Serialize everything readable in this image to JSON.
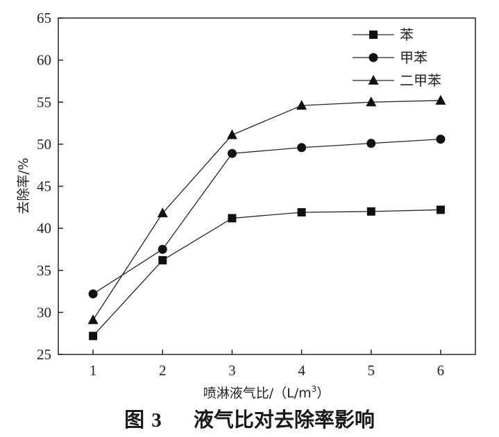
{
  "chart_data": {
    "type": "line",
    "title": "",
    "xlabel": "喷淋液气比/（L/m",
    "xlabel_superscript": "3",
    "xlabel_close": "）",
    "ylabel": "去除率/%",
    "x": [
      1,
      2,
      3,
      4,
      5,
      6
    ],
    "xlim": [
      0.5,
      6.5
    ],
    "ylim": [
      25,
      65
    ],
    "xticks": [
      "1",
      "2",
      "3",
      "4",
      "5",
      "6"
    ],
    "yticks": [
      "25",
      "30",
      "35",
      "40",
      "45",
      "50",
      "55",
      "60",
      "65"
    ],
    "grid": false,
    "legend_position": "top-right",
    "series": [
      {
        "name": "苯",
        "marker": "square",
        "values": [
          27.2,
          36.2,
          41.2,
          41.9,
          42.0,
          42.2
        ]
      },
      {
        "name": "甲苯",
        "marker": "circle",
        "values": [
          32.2,
          37.5,
          48.9,
          49.6,
          50.1,
          50.6
        ]
      },
      {
        "name": "二甲苯",
        "marker": "triangle",
        "values": [
          29.1,
          41.8,
          51.1,
          54.6,
          55.0,
          55.2
        ]
      }
    ]
  },
  "caption": {
    "prefix": "图",
    "number": "3",
    "text": "液气比对去除率影响"
  }
}
